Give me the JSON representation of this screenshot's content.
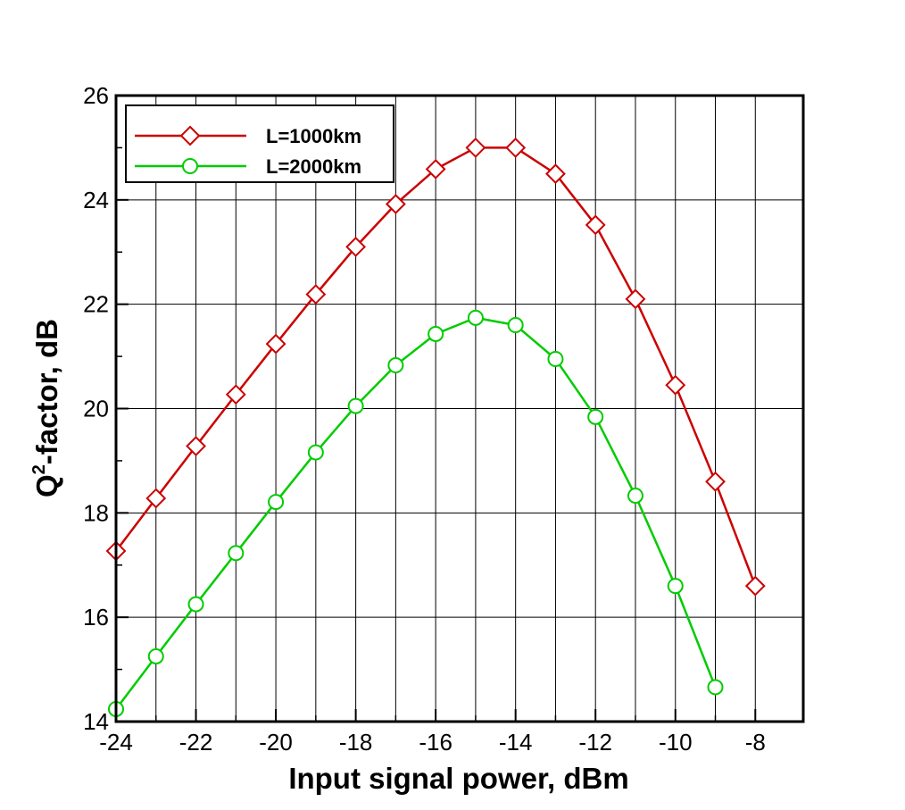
{
  "chart_data": {
    "type": "line",
    "title": "",
    "xlabel": "Input signal power, dBm",
    "ylabel_main": "Q",
    "ylabel_sup": "2",
    "ylabel_rest": "-factor, dB",
    "xlim": [
      -24,
      -6.8
    ],
    "ylim": [
      14,
      26
    ],
    "xticks": [
      -24,
      -22,
      -20,
      -18,
      -16,
      -14,
      -12,
      -10,
      -8
    ],
    "xtick_labels": [
      "-24",
      "-22",
      "-20",
      "-18",
      "-16",
      "-14",
      "-12",
      "-10",
      "-8"
    ],
    "xgrid": [
      -23,
      -22,
      -21,
      -20,
      -19,
      -18,
      -17,
      -16,
      -15,
      -14,
      -13,
      -12,
      -11,
      -10,
      -9,
      -8
    ],
    "yticks": [
      14,
      16,
      18,
      20,
      22,
      24,
      26
    ],
    "ytick_labels": [
      "14",
      "16",
      "18",
      "20",
      "22",
      "24",
      "26"
    ],
    "grid": true,
    "legend_position": "top-left",
    "series": [
      {
        "name": "L=1000km",
        "color": "#cc0000",
        "marker": "diamond",
        "x": [
          -24,
          -23,
          -22,
          -21,
          -20,
          -19,
          -18,
          -17,
          -16,
          -15,
          -14,
          -13,
          -12,
          -11,
          -10,
          -9,
          -8
        ],
        "y": [
          17.27,
          18.28,
          19.28,
          20.27,
          21.24,
          22.19,
          23.1,
          23.92,
          24.59,
          25.0,
          25.0,
          24.5,
          23.52,
          22.1,
          20.45,
          18.6,
          16.6
        ]
      },
      {
        "name": "L=2000km",
        "color": "#00cc00",
        "marker": "circle",
        "x": [
          -24,
          -23,
          -22,
          -21,
          -20,
          -19,
          -18,
          -17,
          -16,
          -15,
          -14,
          -13,
          -12,
          -11,
          -10,
          -9
        ],
        "y": [
          14.24,
          15.25,
          16.25,
          17.23,
          18.21,
          19.16,
          20.05,
          20.83,
          21.43,
          21.74,
          21.6,
          20.95,
          19.84,
          18.33,
          16.6,
          14.66
        ]
      }
    ]
  }
}
